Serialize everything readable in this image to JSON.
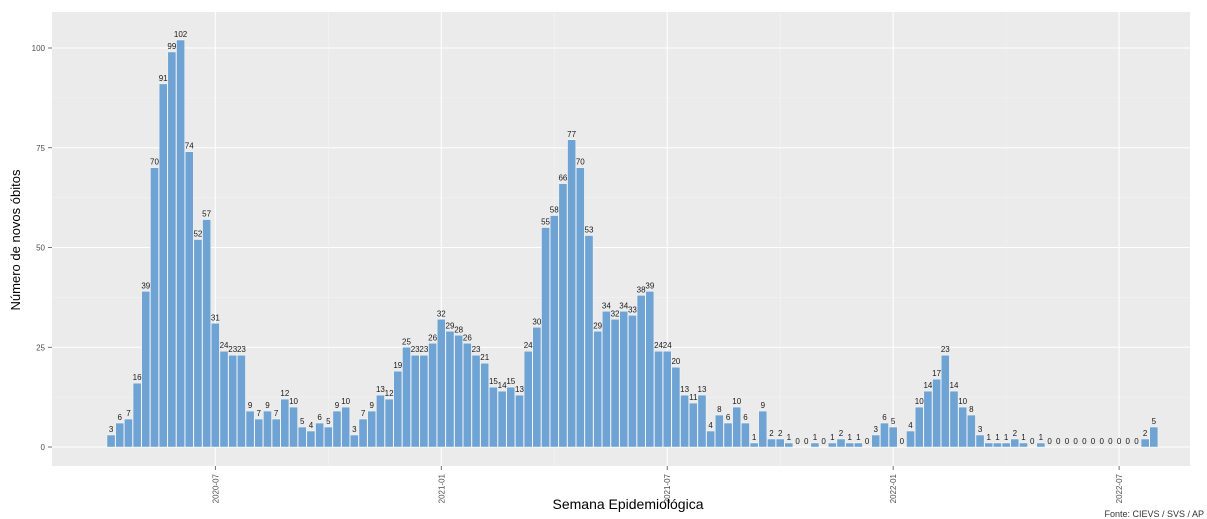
{
  "chart_data": {
    "type": "bar",
    "xlabel": "Semana Epidemiológica",
    "ylabel": "Número de novos óbitos",
    "source": "Fonte: CIEVS / SVS / AP",
    "ylim": [
      0,
      105
    ],
    "yticks": [
      0,
      25,
      50,
      75,
      100
    ],
    "grid": true,
    "bar_color": "#6fa3d3",
    "panel_color": "#ebebeb",
    "x_ticks": [
      {
        "label": "2020-07",
        "index": 12
      },
      {
        "label": "2021-01",
        "index": 38
      },
      {
        "label": "2021-07",
        "index": 64
      },
      {
        "label": "2022-01",
        "index": 90
      },
      {
        "label": "2022-07",
        "index": 116
      }
    ],
    "values": [
      3,
      6,
      7,
      16,
      39,
      70,
      91,
      99,
      102,
      74,
      52,
      57,
      31,
      24,
      23,
      23,
      9,
      7,
      9,
      7,
      12,
      10,
      5,
      4,
      6,
      5,
      9,
      10,
      3,
      7,
      9,
      13,
      12,
      19,
      25,
      23,
      23,
      26,
      32,
      29,
      28,
      26,
      23,
      21,
      15,
      14,
      15,
      13,
      24,
      30,
      55,
      58,
      66,
      77,
      70,
      53,
      29,
      34,
      32,
      34,
      33,
      38,
      39,
      24,
      24,
      20,
      13,
      11,
      13,
      4,
      8,
      6,
      10,
      6,
      1,
      9,
      2,
      2,
      1,
      0,
      0,
      1,
      0,
      1,
      2,
      1,
      1,
      0,
      3,
      6,
      5,
      0,
      4,
      10,
      14,
      17,
      23,
      14,
      10,
      8,
      3,
      1,
      1,
      1,
      2,
      1,
      0,
      1,
      0,
      0,
      0,
      0,
      0,
      0,
      0,
      0,
      0,
      0,
      0,
      2,
      5
    ],
    "value_labels": [
      "3",
      "6",
      "7",
      "16",
      "39",
      "70",
      "91",
      "99",
      "102",
      "74",
      "52",
      "57",
      "31",
      "24",
      "23",
      "23",
      "9",
      "7",
      "9",
      "7",
      "12",
      "10",
      "5",
      "4",
      "6",
      "5",
      "9",
      "10",
      "3",
      "7",
      "9",
      "13",
      "12",
      "19",
      "25",
      "23",
      "23",
      "26",
      "32",
      "29",
      "28",
      "26",
      "23",
      "21",
      "15",
      "14",
      "15",
      "13",
      "24",
      "30",
      "55",
      "58",
      "66",
      "77",
      "70",
      "53",
      "29",
      "34",
      "32",
      "34",
      "33",
      "38",
      "39",
      "24",
      "24",
      "20",
      "13",
      "11",
      "13",
      "4",
      "8",
      "6",
      "10",
      "6",
      "1",
      "9",
      "2",
      "2",
      "1",
      "0",
      "0",
      "1",
      "0",
      "1",
      "2",
      "1",
      "1",
      "0",
      "3",
      "6",
      "5",
      "0",
      "4",
      "10",
      "14",
      "17",
      "23",
      "14",
      "10",
      "8",
      "3",
      "1",
      "1",
      "1",
      "2",
      "1",
      "0",
      "1",
      "0",
      "0",
      "0",
      "0",
      "0",
      "0",
      "0",
      "0",
      "0",
      "0",
      "0",
      "2",
      "5"
    ]
  }
}
